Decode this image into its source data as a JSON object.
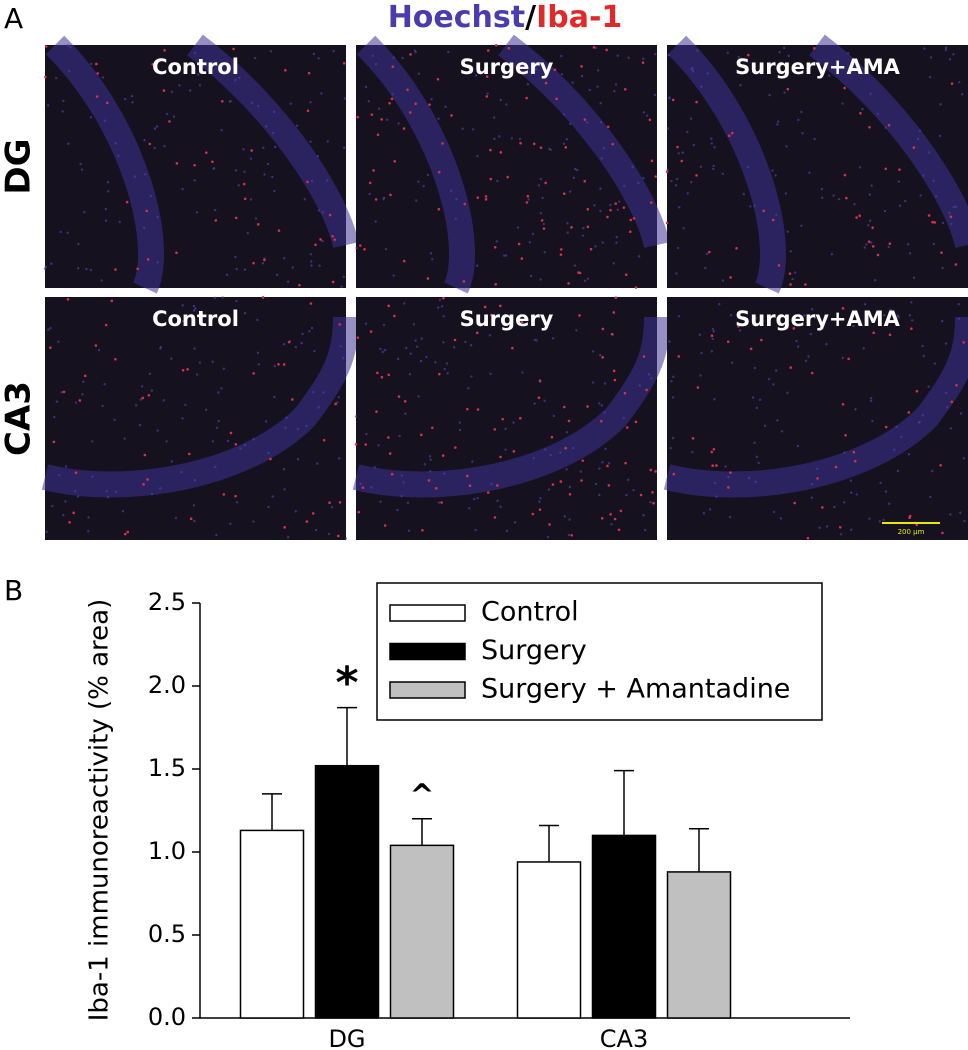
{
  "panel_a": {
    "label": "A",
    "title_parts": [
      "Hoechst",
      "/",
      "Iba-1"
    ],
    "rows": [
      "DG",
      "CA3"
    ],
    "columns": [
      "Control",
      "Surgery",
      "Surgery+AMA"
    ],
    "scale_bar": "200 µm"
  },
  "chart_data": {
    "type": "bar",
    "label": "B",
    "y_label": "Iba-1 immunoreactivity (% area)",
    "categories": [
      "DG",
      "CA3"
    ],
    "series": [
      {
        "name": "Control",
        "color": "#ffffff",
        "values": [
          1.13,
          0.94
        ],
        "errors": [
          0.22,
          0.22
        ],
        "markers": [
          null,
          null
        ]
      },
      {
        "name": "Surgery",
        "color": "#000000",
        "values": [
          1.52,
          1.1
        ],
        "errors": [
          0.35,
          0.39
        ],
        "markers": [
          "*",
          null
        ]
      },
      {
        "name": "Surgery + Amantadine",
        "color": "#c0c0c0",
        "values": [
          1.04,
          0.88
        ],
        "errors": [
          0.16,
          0.26
        ],
        "markers": [
          "^",
          null
        ]
      }
    ],
    "ylim": [
      0,
      2.5
    ],
    "yticks": [
      {
        "value": 0,
        "label": "0.0"
      },
      0.5,
      {
        "value": 1,
        "label": "1.0"
      },
      1.5,
      {
        "value": 2,
        "label": "2.0"
      },
      2.5
    ],
    "legend": "upper right"
  }
}
